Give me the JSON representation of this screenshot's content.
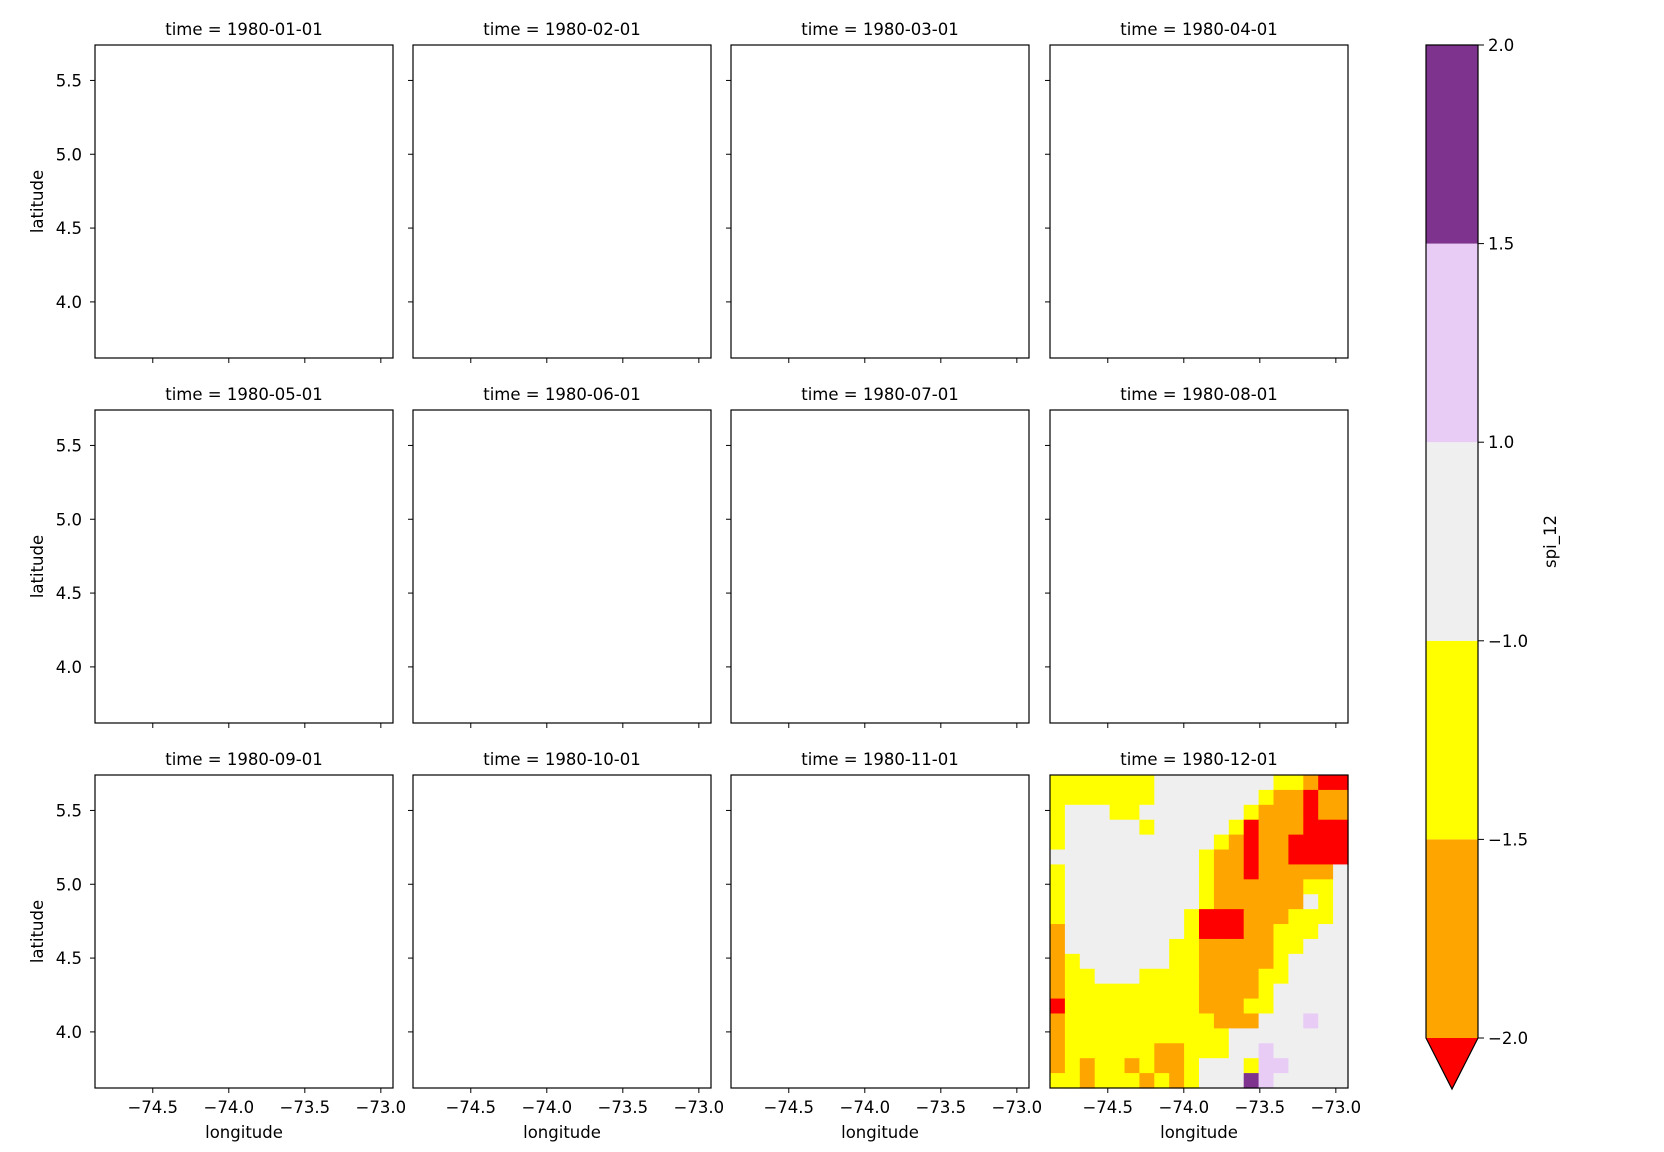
{
  "chart_data": {
    "type": "heatmap",
    "grid": {
      "rows": 3,
      "cols": 4,
      "shared_axes": true
    },
    "xlabel": "longitude",
    "ylabel": "latitude",
    "xlim": [
      -74.88,
      -72.92
    ],
    "ylim": [
      3.62,
      5.74
    ],
    "xticks": [
      -74.5,
      -74.0,
      -73.5,
      -73.0
    ],
    "xtick_labels": [
      "−74.5",
      "−74.0",
      "−73.5",
      "−73.0"
    ],
    "yticks": [
      4.0,
      4.5,
      5.0,
      5.5
    ],
    "ytick_labels": [
      "4.0",
      "4.5",
      "5.0",
      "5.5"
    ],
    "panels": [
      {
        "title": "time = 1980-01-01"
      },
      {
        "title": "time = 1980-02-01"
      },
      {
        "title": "time = 1980-03-01"
      },
      {
        "title": "time = 1980-04-01"
      },
      {
        "title": "time = 1980-05-01"
      },
      {
        "title": "time = 1980-06-01"
      },
      {
        "title": "time = 1980-07-01"
      },
      {
        "title": "time = 1980-08-01"
      },
      {
        "title": "time = 1980-09-01"
      },
      {
        "title": "time = 1980-10-01"
      },
      {
        "title": "time = 1980-11-01"
      },
      {
        "title": "time = 1980-12-01"
      }
    ],
    "heatmap": {
      "panel_title": "time = 1980-12-01",
      "lon_range": [
        -74.88,
        -72.92
      ],
      "lat_range": [
        3.62,
        5.74
      ],
      "n_cols": 20,
      "n_rows": 21,
      "legend_key": "B=below -2.0, R=-2.0..-1.5 orange, Y=-1.5..-1.0 yellow, G=-1.0..1.0 grey, L=1.0..1.5 lavender, P=1.5..2.0 purple",
      "rows_top_to_bottom": [
        "YYYYYYYGGGGGGGGYYRBB",
        "YYYYYYYGGGGGGGYRRBRR",
        "YGGGYYGGGGGGGYRRRBRR",
        "YGGGGGYGGGGGYBRRRBBB",
        "YGGGGGGGGGGYRBRRBBBB",
        "GGGGGGGGGGYRRBRRBBBB",
        "YGGGGGGGGGYRRBRRRRRG",
        "YGGGGGGGGGYRRRRRRYYG",
        "YGGGGGGGGGYRRRRRRGYG",
        "YGGGGGGGGYBBBRRRYYYG",
        "RGGGGGGGGYBBBRRYYYGG",
        "RGGGGGGGYYRRRRRYYGGG",
        "RYGGGGGGYYRRRRRYGGGG",
        "RYYGGGYYYYRRRRYYGGGG",
        "RYYYYYYYYYRRRRYGGGGG",
        "BYYYYYYYYYRRRYYGGGGG",
        "RYYYYYYYYYYRRRGGGLGG",
        "RYYYYYYYYYYYGGGGGGGG",
        "RYYYYYYRRYYYGGLGGGGG",
        "RYRYYRYRRYGGGYLLGGGG",
        "YYRYYYRYRYGGGPLGGGGG"
      ]
    },
    "colorbar": {
      "label": "spi_12",
      "ticks": [
        -2.0,
        -1.5,
        -1.0,
        1.0,
        1.5,
        2.0
      ],
      "tick_labels": [
        "−2.0",
        "−1.5",
        "−1.0",
        "1.0",
        "1.5",
        "2.0"
      ],
      "levels": [
        {
          "key": "R",
          "from": -2.0,
          "to": -1.5,
          "color": "#ffa500"
        },
        {
          "key": "Y",
          "from": -1.5,
          "to": -1.0,
          "color": "#ffff00"
        },
        {
          "key": "G",
          "from": -1.0,
          "to": 1.0,
          "color": "#efefef"
        },
        {
          "key": "L",
          "from": 1.0,
          "to": 1.5,
          "color": "#e8ccf5"
        },
        {
          "key": "P",
          "from": 1.5,
          "to": 2.0,
          "color": "#7e348f"
        }
      ],
      "under_color": "#ff0000",
      "extend": "min"
    }
  }
}
